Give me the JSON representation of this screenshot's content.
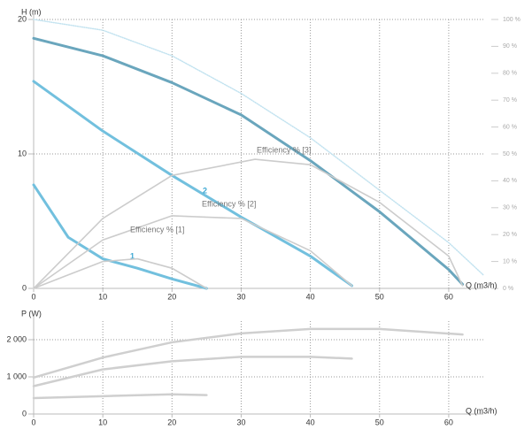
{
  "chart_data": [
    {
      "type": "line",
      "ylabel": "H (m)",
      "xlabel": "Q (m3/h)",
      "xlim": [
        0,
        65
      ],
      "xticks": [
        0,
        10,
        20,
        30,
        40,
        50,
        60
      ],
      "ylim": [
        0,
        20
      ],
      "yticks": [
        0,
        10,
        20
      ],
      "y2lim": [
        0,
        100
      ],
      "y2ticks": [
        {
          "value": 0,
          "label": "0 %"
        },
        {
          "value": 10,
          "label": "10 %"
        },
        {
          "value": 20,
          "label": "20 %"
        },
        {
          "value": 30,
          "label": "30 %"
        },
        {
          "value": 40,
          "label": "40 %"
        },
        {
          "value": 50,
          "label": "50 %"
        },
        {
          "value": 60,
          "label": "60 %"
        },
        {
          "value": 70,
          "label": "70 %"
        },
        {
          "value": 80,
          "label": "80 %"
        },
        {
          "value": 90,
          "label": "90 %"
        },
        {
          "value": 100,
          "label": "100 %"
        }
      ],
      "grid": true,
      "series": [
        {
          "color": "#c3e3f0",
          "dashed": true,
          "x": [
            0,
            10,
            20,
            30,
            40,
            50,
            60,
            65
          ],
          "values": [
            20,
            19.2,
            17.3,
            14.5,
            11.2,
            7.3,
            3.4,
            1
          ]
        },
        {
          "color": "#6aa6bd",
          "x": [
            0,
            10,
            20,
            30,
            40,
            50,
            60,
            62
          ],
          "values": [
            18.6,
            17.3,
            15.3,
            12.9,
            9.5,
            5.7,
            1.4,
            0.3
          ]
        },
        {
          "name": "2",
          "color": "#72c0de",
          "x": [
            0,
            10,
            20,
            30,
            40,
            46
          ],
          "values": [
            15.4,
            11.7,
            8.4,
            5.3,
            2.4,
            0.2
          ]
        },
        {
          "name": "1",
          "color": "#72c0de",
          "x": [
            0,
            5,
            10,
            15,
            20,
            25
          ],
          "values": [
            7.7,
            3.8,
            2.2,
            1.5,
            0.7,
            0
          ]
        },
        {
          "name": "Efficiency % [3]",
          "color": "#cccccc",
          "axis": "y2",
          "x": [
            0,
            10,
            20,
            32,
            40,
            50,
            60,
            62
          ],
          "values": [
            0,
            26,
            42,
            48,
            46,
            32,
            12,
            1
          ]
        },
        {
          "name": "Efficiency % [2]",
          "color": "#cccccc",
          "axis": "y2",
          "x": [
            0,
            10,
            20,
            30,
            40,
            46
          ],
          "values": [
            0,
            18,
            27,
            26,
            14,
            1
          ]
        },
        {
          "name": "Efficiency % [1]",
          "color": "#cccccc",
          "axis": "y2",
          "x": [
            0,
            5,
            10,
            15,
            20,
            25
          ],
          "values": [
            0,
            5,
            10,
            11,
            7.5,
            0
          ]
        }
      ]
    },
    {
      "type": "line",
      "ylabel": "P (W)",
      "xlabel": "Q (m3/h)",
      "xlim": [
        0,
        65
      ],
      "xticks": [
        0,
        10,
        20,
        30,
        40,
        50,
        60
      ],
      "ylim": [
        0,
        2500
      ],
      "yticks": [
        0,
        {
          "value": 1000,
          "label": "1 000"
        },
        {
          "value": 2000,
          "label": "2 000"
        }
      ],
      "grid": true,
      "series": [
        {
          "color": "#cfcfcf",
          "x": [
            0,
            10,
            20,
            30,
            40,
            50,
            62
          ],
          "values": [
            980,
            1520,
            1930,
            2170,
            2290,
            2290,
            2140
          ]
        },
        {
          "color": "#cfcfcf",
          "x": [
            0,
            10,
            20,
            30,
            40,
            46
          ],
          "values": [
            750,
            1200,
            1420,
            1540,
            1540,
            1490
          ]
        },
        {
          "color": "#cfcfcf",
          "x": [
            0,
            10,
            20,
            25
          ],
          "values": [
            430,
            480,
            530,
            510
          ]
        }
      ]
    }
  ]
}
